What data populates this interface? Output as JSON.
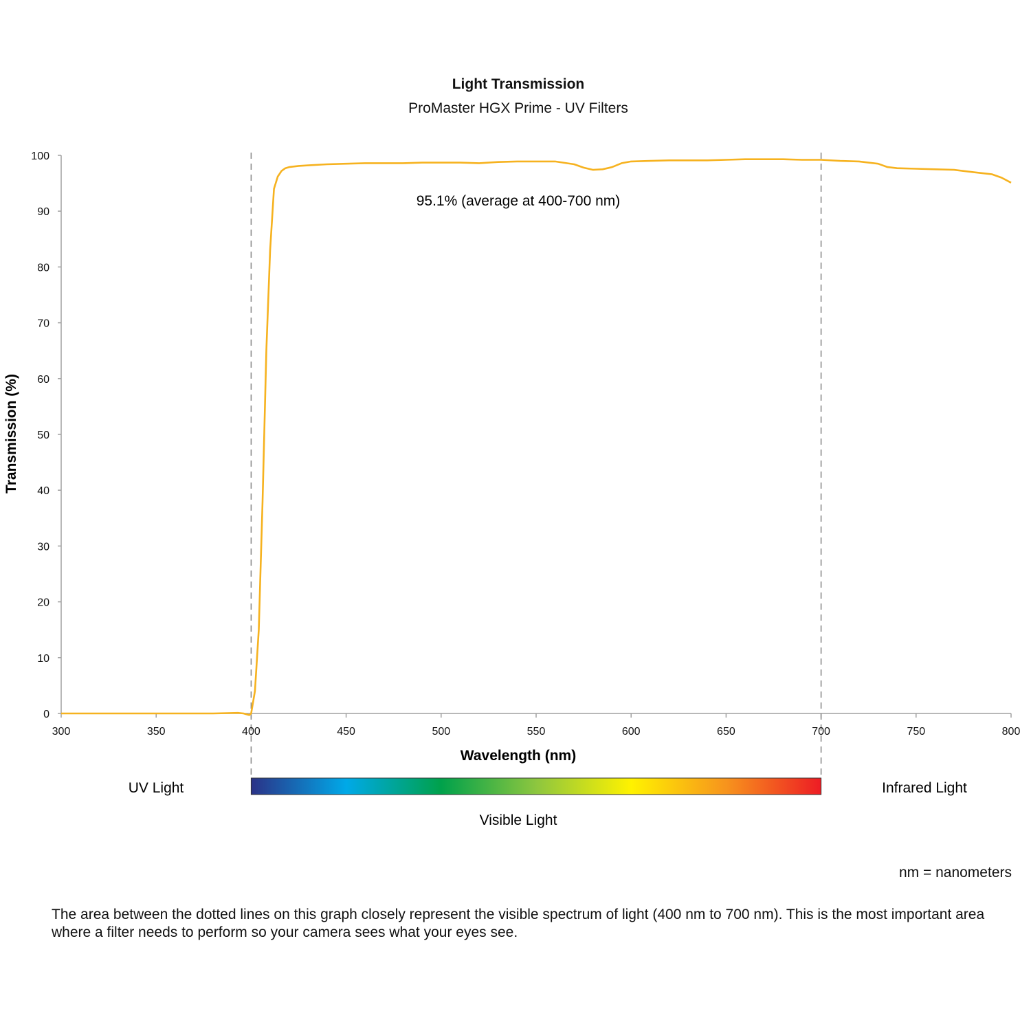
{
  "chart_data": {
    "type": "line",
    "title": "Light Transmission",
    "subtitle": "ProMaster HGX Prime - UV Filters",
    "xlabel": "Wavelength (nm)",
    "ylabel": "Transmission (%)",
    "xlim": [
      300,
      800
    ],
    "ylim": [
      0,
      100
    ],
    "xticks": [
      300,
      350,
      400,
      450,
      500,
      550,
      600,
      650,
      700,
      750,
      800
    ],
    "yticks": [
      0,
      10,
      20,
      30,
      40,
      50,
      60,
      70,
      80,
      90,
      100
    ],
    "grid": false,
    "line_color": "#F6B21F",
    "reference_lines": [
      400,
      700
    ],
    "annotation": "95.1% (average at 400-700 nm)",
    "series": [
      {
        "x": [
          300,
          320,
          340,
          360,
          380,
          393,
          396,
          399,
          400,
          402,
          404,
          406,
          408,
          410,
          412,
          414,
          416,
          418,
          420,
          425,
          430,
          440,
          450,
          460,
          470,
          480,
          490,
          500,
          510,
          520,
          530,
          540,
          550,
          560,
          570,
          575,
          580,
          585,
          590,
          595,
          600,
          610,
          620,
          630,
          640,
          650,
          660,
          670,
          680,
          690,
          700,
          710,
          720,
          730,
          735,
          740,
          750,
          760,
          770,
          780,
          790,
          795,
          800
        ],
        "y": [
          0,
          0,
          0,
          0,
          0,
          0.1,
          0,
          -0.3,
          0,
          4,
          15,
          38,
          65,
          83,
          94,
          96.2,
          97.2,
          97.7,
          97.9,
          98.1,
          98.2,
          98.4,
          98.5,
          98.6,
          98.6,
          98.6,
          98.7,
          98.7,
          98.7,
          98.6,
          98.8,
          98.9,
          98.9,
          98.9,
          98.4,
          97.8,
          97.4,
          97.5,
          97.9,
          98.6,
          98.9,
          99.0,
          99.1,
          99.1,
          99.1,
          99.2,
          99.3,
          99.3,
          99.3,
          99.2,
          99.2,
          99.0,
          98.9,
          98.5,
          97.9,
          97.7,
          97.6,
          97.5,
          97.4,
          97.0,
          96.6,
          96.0,
          95.1
        ]
      }
    ],
    "spectrum": {
      "from": 400,
      "to": 700,
      "stops": [
        "#2B3287",
        "#00A9E8",
        "#00A14B",
        "#8DC63F",
        "#FFF200",
        "#F7941D",
        "#ED1C24"
      ]
    },
    "regions": {
      "uv": "UV Light",
      "visible": "Visible Light",
      "infrared": "Infrared Light"
    }
  },
  "footnote": "nm = nanometers",
  "description": "The area between the dotted lines on this graph closely represent the visible spectrum of light (400 nm to 700 nm). This is the most important area where a filter needs to perform so your camera sees what your eyes see."
}
